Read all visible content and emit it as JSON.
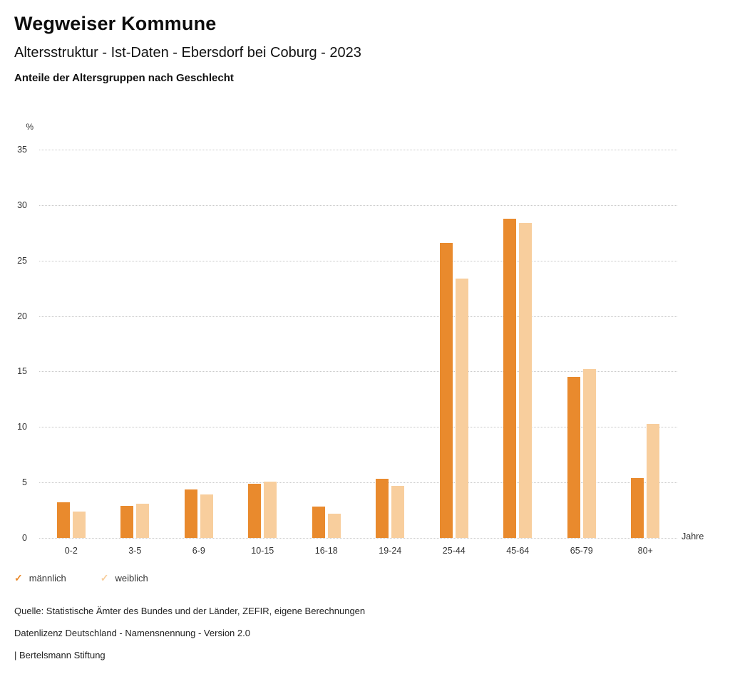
{
  "header": {
    "title": "Wegweiser Kommune",
    "subtitle": "Altersstruktur - Ist-Daten - Ebersdorf bei Coburg - 2023",
    "chart_heading": "Anteile der Altersgruppen nach Geschlecht"
  },
  "chart_data": {
    "type": "bar",
    "title": "Anteile der Altersgruppen nach Geschlecht",
    "categories": [
      "0-2",
      "3-5",
      "6-9",
      "10-15",
      "16-18",
      "19-24",
      "25-44",
      "45-64",
      "65-79",
      "80+"
    ],
    "series": [
      {
        "key": "maennlich",
        "name": "männlich",
        "color": "#E98A2D",
        "values": [
          3.2,
          2.9,
          4.4,
          4.9,
          2.8,
          5.3,
          26.6,
          28.8,
          14.5,
          5.4
        ]
      },
      {
        "key": "weiblich",
        "name": "weiblich",
        "color": "#F8CE9D",
        "values": [
          2.4,
          3.1,
          3.9,
          5.1,
          2.2,
          4.7,
          23.4,
          28.4,
          15.2,
          10.3
        ]
      }
    ],
    "ylabel": "%",
    "xlabel": "Jahre",
    "ylim": [
      0,
      35
    ],
    "yticks": [
      0,
      5,
      10,
      15,
      20,
      25,
      30,
      35
    ],
    "grid": "dotted horizontal",
    "legend_position": "bottom-left"
  },
  "legend": {
    "items": [
      {
        "label": "männlich",
        "color": "#E98A2D",
        "icon": "check-icon"
      },
      {
        "label": "weiblich",
        "color": "#F8CE9D",
        "icon": "check-icon"
      }
    ],
    "check_glyph": "✓"
  },
  "footer": {
    "source": "Quelle: Statistische Ämter des Bundes und der Länder, ZEFIR, eigene Berechnungen",
    "license": "Datenlizenz Deutschland - Namensnennung - Version 2.0",
    "attribution": "| Bertelsmann Stiftung"
  }
}
